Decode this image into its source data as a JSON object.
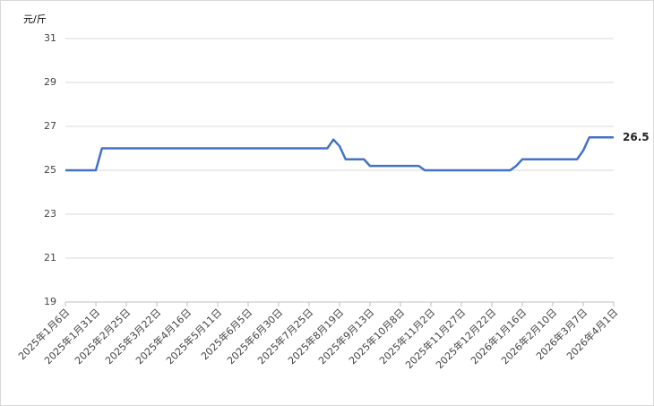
{
  "chart_data": {
    "type": "line",
    "y_label": "元/斤",
    "categories": [
      "2025年1月6日",
      null,
      null,
      null,
      null,
      "2025年1月31日",
      null,
      null,
      null,
      null,
      "2025年2月25日",
      null,
      null,
      null,
      null,
      "2025年3月22日",
      null,
      null,
      null,
      null,
      "2025年4月16日",
      null,
      null,
      null,
      null,
      "2025年5月11日",
      null,
      null,
      null,
      null,
      "2025年6月5日",
      null,
      null,
      null,
      null,
      "2025年6月30日",
      null,
      null,
      null,
      null,
      "2025年7月25日",
      null,
      null,
      null,
      null,
      "2025年8月19日",
      null,
      null,
      null,
      null,
      "2025年9月13日",
      null,
      null,
      null,
      null,
      "2025年10月8日",
      null,
      null,
      null,
      null,
      "2025年11月2日",
      null,
      null,
      null,
      null,
      "2025年11月27日",
      null,
      null,
      null,
      null,
      "2025年12月22日",
      null,
      null,
      null,
      null,
      "2026年1月16日",
      null,
      null,
      null,
      null,
      "2026年2月10日",
      null,
      null,
      null,
      null,
      "2026年3月7日",
      null,
      null,
      null,
      null,
      "2026年4月1日"
    ],
    "series": [
      {
        "color": "#4472c4",
        "values": [
          25,
          25,
          25,
          25,
          25,
          25,
          26,
          26,
          26,
          26,
          26,
          26,
          26,
          26,
          26,
          26,
          26,
          26,
          26,
          26,
          26,
          26,
          26,
          26,
          26,
          26,
          26,
          26,
          26,
          26,
          26,
          26,
          26,
          26,
          26,
          26,
          26,
          26,
          26,
          26,
          26,
          26,
          26,
          26,
          26.4,
          26.1,
          25.5,
          25.5,
          25.5,
          25.5,
          25.2,
          25.2,
          25.2,
          25.2,
          25.2,
          25.2,
          25.2,
          25.2,
          25.2,
          25,
          25,
          25,
          25,
          25,
          25,
          25,
          25,
          25,
          25,
          25,
          25,
          25,
          25,
          25,
          25.2,
          25.5,
          25.5,
          25.5,
          25.5,
          25.5,
          25.5,
          25.5,
          25.5,
          25.5,
          25.5,
          25.9,
          26.5,
          26.5,
          26.5,
          26.5,
          26.5
        ]
      }
    ],
    "ylim": [
      19,
      31
    ],
    "yticks": [
      19,
      21,
      23,
      25,
      27,
      29,
      31
    ],
    "grid": true,
    "last_value_label": true
  }
}
